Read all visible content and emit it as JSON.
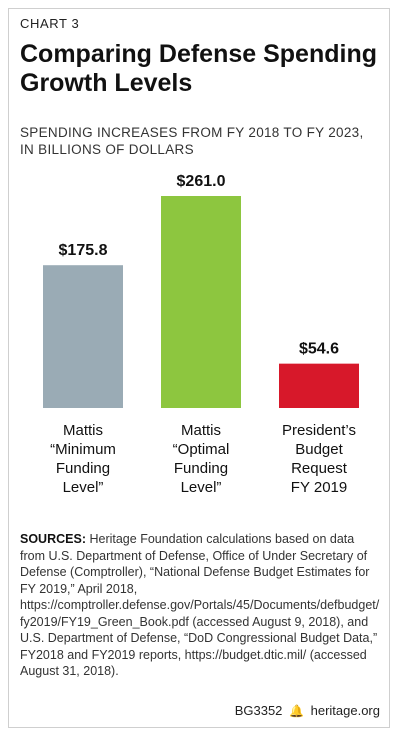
{
  "header": {
    "chart_label": "CHART 3",
    "title": "Comparing Defense Spending Growth Levels",
    "subtitle": "SPENDING INCREASES FROM FY 2018 TO FY 2023, IN BILLIONS OF DOLLARS"
  },
  "chart_data": {
    "type": "bar",
    "categories": [
      "Mattis “Minimum Funding Level”",
      "Mattis “Optimal Funding Level”",
      "President’s Budget Request FY 2019"
    ],
    "category_lines": [
      [
        "Mattis",
        "“Minimum",
        "Funding",
        "Level”"
      ],
      [
        "Mattis",
        "“Optimal",
        "Funding",
        "Level”"
      ],
      [
        "President’s",
        "Budget",
        "Request",
        "FY 2019"
      ]
    ],
    "values": [
      175.8,
      261.0,
      54.6
    ],
    "value_labels": [
      "$175.8",
      "$261.0",
      "$54.6"
    ],
    "colors": [
      "#9aabb5",
      "#8dc63f",
      "#d7182a"
    ],
    "title": "Comparing Defense Spending Growth Levels",
    "xlabel": "",
    "ylabel": "",
    "ylim": [
      0,
      261.0
    ],
    "grid": false,
    "legend": "none"
  },
  "sources": {
    "label": "SOURCES:",
    "text": "Heritage Foundation calculations based on data from U.S. Department of Defense, Office of Under Secretary of Defense (Comptroller), “National Defense Budget Estimates for FY 2019,” April 2018, https://comptroller.defense.gov/Portals/45/Documents/defbudget/fy2019/FY19_Green_Book.pdf (accessed August 9, 2018), and U.S. Department of Defense, “DoD Congressional Budget Data,” FY2018 and FY2019 reports, https://budget.dtic.mil/ (accessed August 31, 2018)."
  },
  "footer": {
    "code": "BG3352",
    "bell_icon": "liberty-bell-icon",
    "site": "heritage.org"
  }
}
